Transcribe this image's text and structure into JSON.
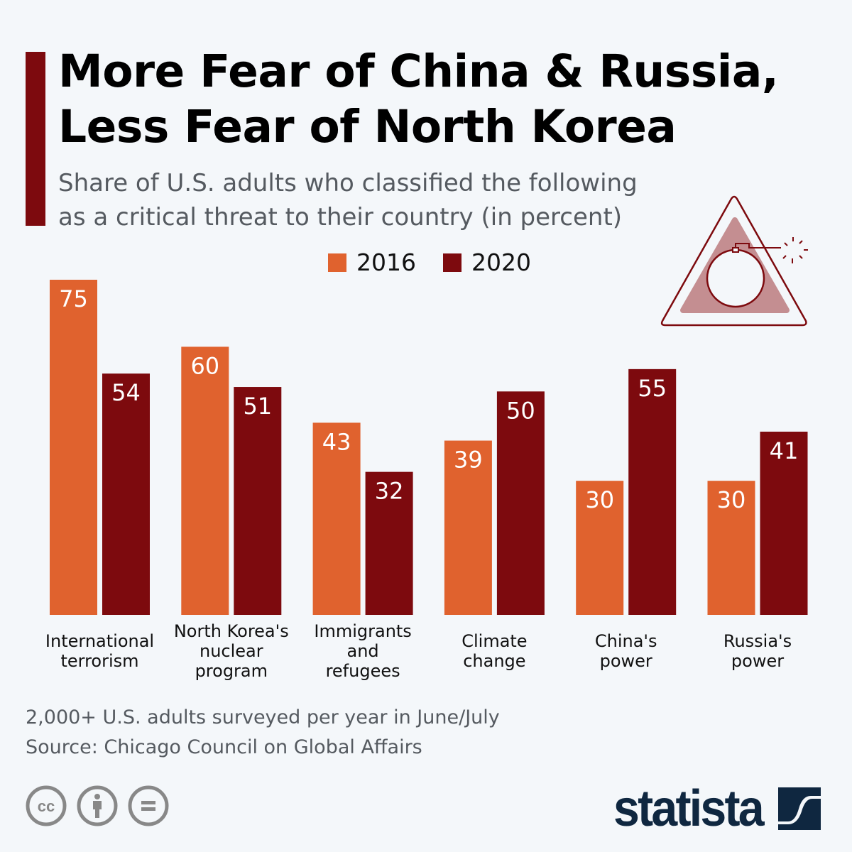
{
  "header": {
    "title_lines": [
      "More Fear of China & Russia,",
      "Less Fear of North Korea"
    ],
    "subtitle_lines": [
      "Share of U.S. adults who classified the following",
      "as a critical threat to their country (in percent)"
    ]
  },
  "chart_data": {
    "type": "bar",
    "title": "More Fear of China & Russia, Less Fear of North Korea",
    "ylabel": "Share of U.S. adults (%)",
    "ylim": [
      0,
      75
    ],
    "grid": false,
    "legend_position": "top-center",
    "categories": [
      "International terrorism",
      "North Korea's nuclear program",
      "Immigrants and refugees",
      "Climate change",
      "China's power",
      "Russia's power"
    ],
    "category_lines": [
      [
        "International",
        "terrorism"
      ],
      [
        "North Korea's",
        "nuclear",
        "program"
      ],
      [
        "Immigrants",
        "and",
        "refugees"
      ],
      [
        "Climate",
        "change"
      ],
      [
        "China's",
        "power"
      ],
      [
        "Russia's",
        "power"
      ]
    ],
    "series": [
      {
        "name": "2016",
        "color": "#e0622e",
        "values": [
          75,
          60,
          43,
          39,
          30,
          30
        ]
      },
      {
        "name": "2020",
        "color": "#7d0a0e",
        "values": [
          54,
          51,
          32,
          50,
          55,
          41
        ]
      }
    ]
  },
  "footer": {
    "note": "2,000+ U.S. adults surveyed per year in June/July",
    "source": "Source: Chicago Council on Global Affairs",
    "logo": "statista"
  }
}
